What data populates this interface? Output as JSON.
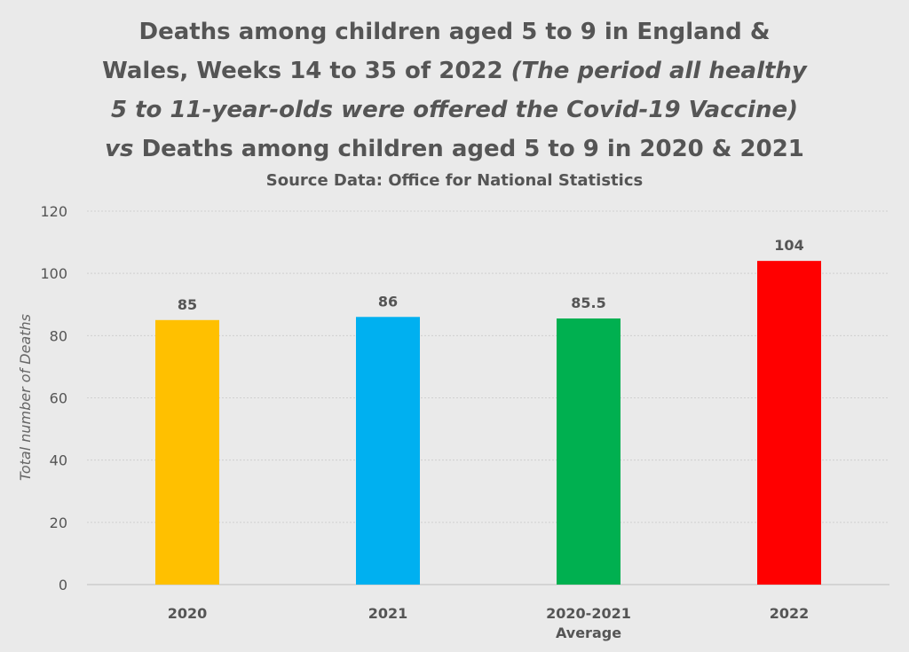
{
  "title": {
    "line1": "Deaths among children aged 5 to 9 in England &",
    "line2_plain": "Wales, Weeks 14 to 35 of 2022 ",
    "line2_italic": "(The period all healthy",
    "line3_italic": "5 to 11-year-olds were offered the Covid-19 Vaccine)",
    "line4_italic": "vs",
    "line4_plain": " Deaths among children aged 5 to 9 in 2020 & 2021"
  },
  "subtitle": "Source Data: Office for National Statistics",
  "chart_data": {
    "type": "bar",
    "title": "Deaths among children aged 5 to 9 in England & Wales, Weeks 14 to 35 of 2022 (The period all healthy 5 to 11-year-olds were offered the Covid-19 Vaccine) vs Deaths among children aged 5 to 9 in 2020 & 2021",
    "subtitle": "Source Data: Office for National Statistics",
    "categories": [
      [
        "2020"
      ],
      [
        "2021"
      ],
      [
        "2020-2021",
        "Average"
      ],
      [
        "2022"
      ]
    ],
    "values": [
      85,
      86,
      85.5,
      104
    ],
    "data_labels": [
      "85",
      "86",
      "85.5",
      "104"
    ],
    "colors": [
      "#ffc000",
      "#00b0f0",
      "#00b050",
      "#ff0000"
    ],
    "ylabel": "Total number of Deaths",
    "xlabel": "",
    "ylim": [
      0,
      120
    ],
    "yticks": [
      0,
      20,
      40,
      60,
      80,
      100,
      120
    ],
    "grid": true,
    "legend": "none"
  },
  "colors": {
    "background": "#eaeaea",
    "text": "#555555",
    "gridline": "#d0d0d0"
  }
}
